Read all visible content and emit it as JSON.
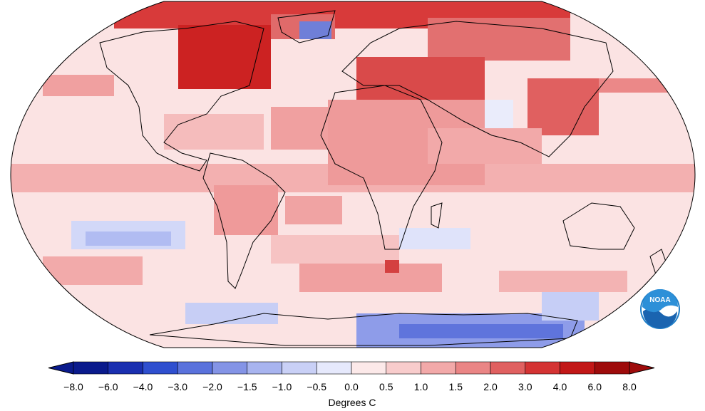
{
  "legend": {
    "unit_label": "Degrees C",
    "tick_labels": [
      "−8.0",
      "−6.0",
      "−4.0",
      "−3.0",
      "−2.0",
      "−1.5",
      "−1.0",
      "−0.5",
      "0.0",
      "0.5",
      "1.0",
      "1.5",
      "2.0",
      "3.0",
      "4.0",
      "6.0",
      "8.0"
    ],
    "bin_colors": [
      "#0a1a8c",
      "#1a2fb0",
      "#2f4fcf",
      "#5a72dc",
      "#8494e6",
      "#a8b4ef",
      "#c9d0f6",
      "#e6e9fc",
      "#fce9e9",
      "#f8cccc",
      "#f2a9a9",
      "#ea8585",
      "#e06060",
      "#d43333",
      "#c21717",
      "#9e0b0b"
    ]
  },
  "logo": {
    "text": "NOAA"
  },
  "map": {
    "projection": "robinson",
    "anomaly_range": [
      -8,
      8
    ],
    "colors": {
      "land_outline": "#000000",
      "ocean_base": "#fce4e4"
    }
  }
}
